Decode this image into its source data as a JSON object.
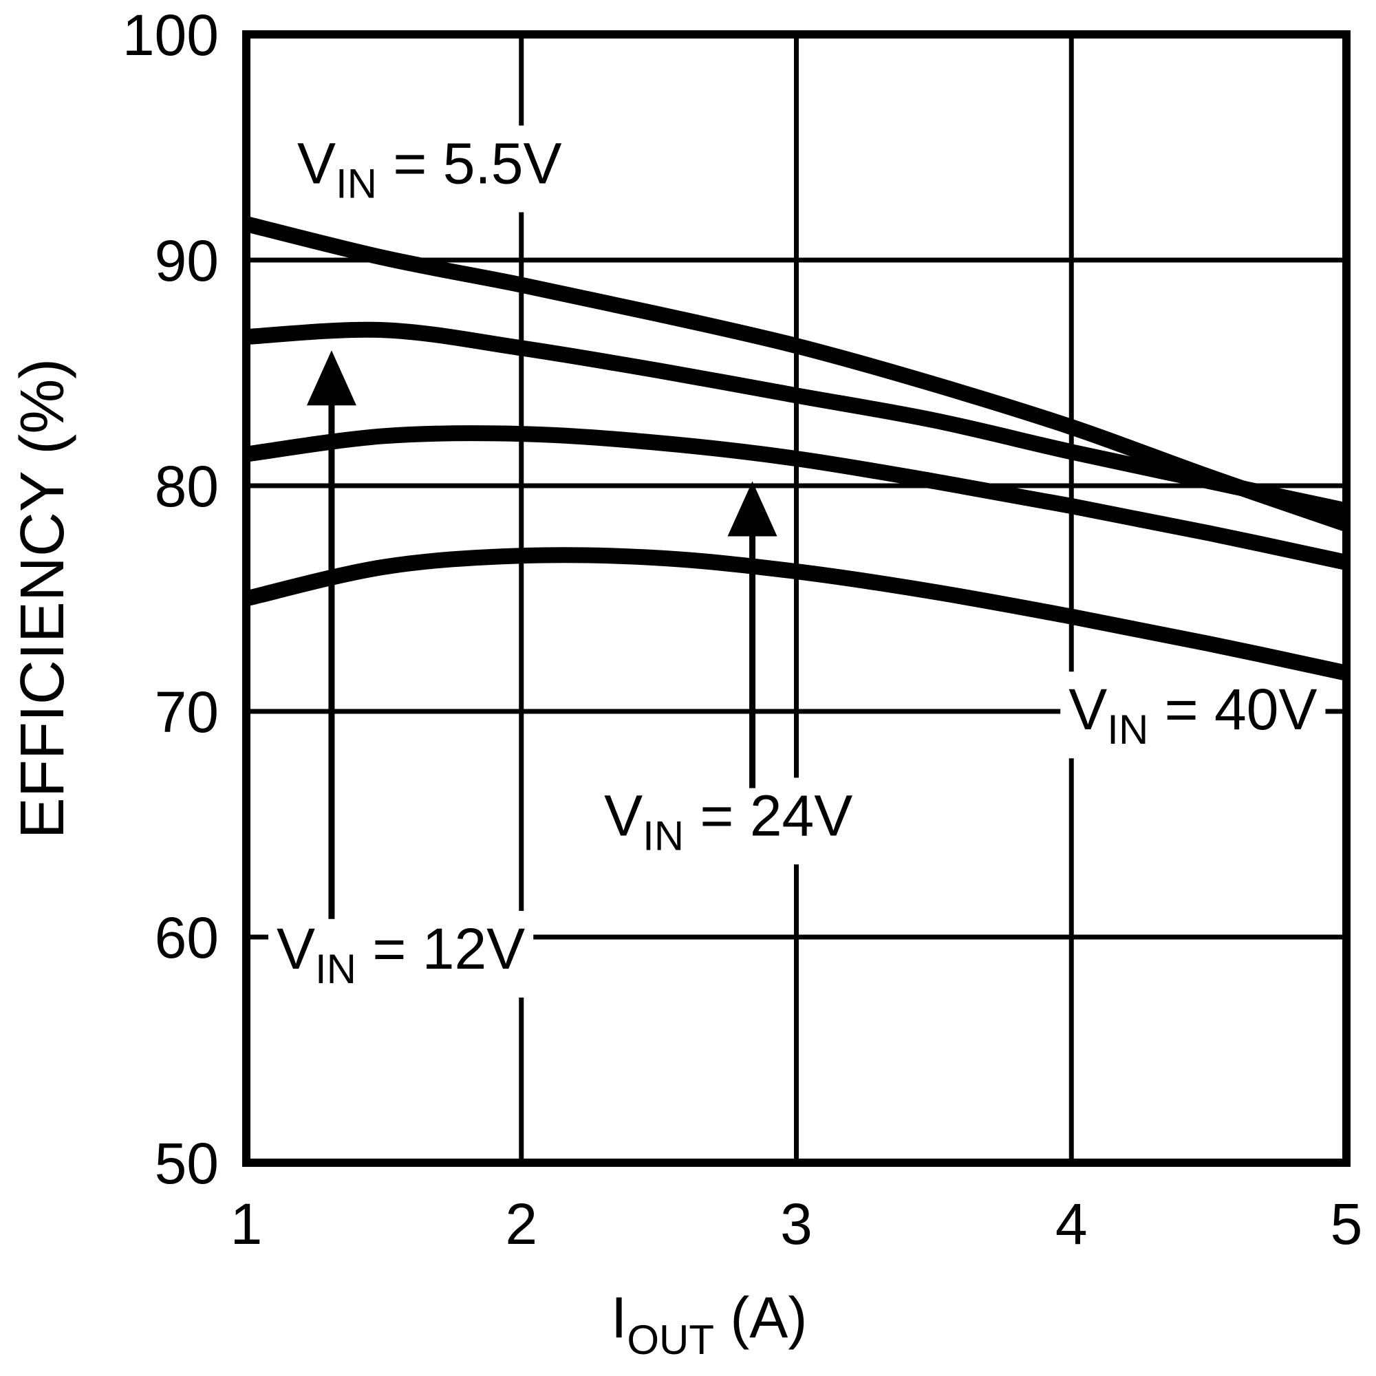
{
  "figure": {
    "background": "#ffffff",
    "ink": "#000000"
  },
  "chart_data": {
    "type": "line",
    "title": "",
    "xlabel": {
      "main": "I",
      "sub": "OUT",
      "rest": " (A)"
    },
    "ylabel": "EFFICIENCY (%)",
    "xlim": [
      1,
      5
    ],
    "ylim": [
      50,
      100
    ],
    "xticks": [
      "1",
      "2",
      "3",
      "4",
      "5"
    ],
    "yticks": [
      "50",
      "60",
      "70",
      "80",
      "90",
      "100"
    ],
    "grid": true,
    "legend_position": "inline-annotations",
    "x": [
      1,
      1.5,
      2,
      2.5,
      3,
      3.5,
      4,
      4.5,
      5
    ],
    "series": [
      {
        "id": "vin-5p5v",
        "name": "VIN = 5.5V",
        "values": [
          91.6,
          90.1,
          88.9,
          87.6,
          86.2,
          84.5,
          82.6,
          80.4,
          78.3
        ]
      },
      {
        "id": "vin-12v",
        "name": "VIN = 12V",
        "values": [
          86.6,
          86.9,
          86.1,
          85.1,
          84.0,
          82.9,
          81.5,
          80.2,
          78.9
        ]
      },
      {
        "id": "vin-24v",
        "name": "VIN = 24V",
        "values": [
          81.4,
          82.2,
          82.3,
          81.9,
          81.2,
          80.2,
          79.1,
          77.9,
          76.6
        ]
      },
      {
        "id": "vin-40v",
        "name": "VIN = 40V",
        "values": [
          75.0,
          76.4,
          76.9,
          76.8,
          76.2,
          75.3,
          74.2,
          73.0,
          71.7
        ]
      }
    ],
    "annotations": [
      {
        "id": "vin-5p5v",
        "label": {
          "main": "V",
          "sub": "IN",
          "rest": " = 5.5V"
        },
        "x": 1.185,
        "y": 93.4,
        "bg": true,
        "arrow": null
      },
      {
        "id": "vin-12v",
        "label": {
          "main": "V",
          "sub": "IN",
          "rest": " = 12V"
        },
        "x": 1.11,
        "y": 58.6,
        "bg": true,
        "arrow": {
          "x": 1.31,
          "y_from": 60.8,
          "y_to": 86.0
        }
      },
      {
        "id": "vin-24v",
        "label": {
          "main": "V",
          "sub": "IN",
          "rest": " = 24V"
        },
        "x": 2.301,
        "y": 64.5,
        "bg": true,
        "arrow": {
          "x": 2.84,
          "y_from": 66.6,
          "y_to": 80.2
        }
      },
      {
        "id": "vin-40v",
        "label": {
          "main": "V",
          "sub": "IN",
          "rest": " = 40V"
        },
        "x": 3.99,
        "y": 69.2,
        "bg": true,
        "arrow": null
      }
    ]
  }
}
